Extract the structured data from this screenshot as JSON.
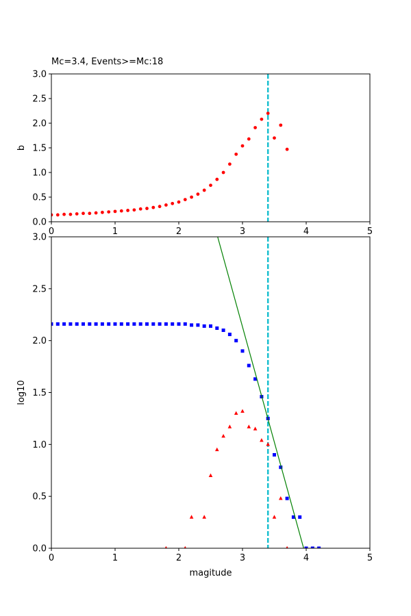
{
  "chart_data": [
    {
      "type": "scatter",
      "title": "Mc=3.4, Events>=Mc:18",
      "xlabel": "",
      "ylabel": "b",
      "xlim": [
        0,
        5
      ],
      "ylim": [
        0,
        3
      ],
      "xticks": [
        "0",
        "1",
        "2",
        "3",
        "4",
        "5"
      ],
      "yticks": [
        "0.0",
        "0.5",
        "1.0",
        "1.5",
        "2.0",
        "2.5",
        "3.0"
      ],
      "grid": false,
      "vline": {
        "x": 3.4,
        "style": "dashed",
        "color": "#17becf"
      },
      "series": [
        {
          "marker": "circle",
          "color": "#ff0000",
          "x": [
            0.0,
            0.1,
            0.2,
            0.3,
            0.4,
            0.5,
            0.6,
            0.7,
            0.8,
            0.9,
            1.0,
            1.1,
            1.2,
            1.3,
            1.4,
            1.5,
            1.6,
            1.7,
            1.8,
            1.9,
            2.0,
            2.1,
            2.2,
            2.3,
            2.4,
            2.5,
            2.6,
            2.7,
            2.8,
            2.9,
            3.0,
            3.1,
            3.2,
            3.3,
            3.4,
            3.5,
            3.6,
            3.7
          ],
          "y": [
            0.14,
            0.14,
            0.15,
            0.15,
            0.16,
            0.17,
            0.17,
            0.18,
            0.19,
            0.2,
            0.21,
            0.22,
            0.23,
            0.24,
            0.26,
            0.27,
            0.29,
            0.31,
            0.34,
            0.37,
            0.4,
            0.45,
            0.5,
            0.56,
            0.64,
            0.74,
            0.86,
            1.0,
            1.17,
            1.37,
            1.54,
            1.68,
            1.91,
            2.08,
            2.2,
            1.7,
            1.96,
            1.47
          ]
        }
      ]
    },
    {
      "type": "scatter",
      "title": "",
      "xlabel": "magitude",
      "ylabel": "log10",
      "xlim": [
        0,
        5
      ],
      "ylim": [
        0,
        3
      ],
      "xticks": [
        "0",
        "1",
        "2",
        "3",
        "4",
        "5"
      ],
      "yticks": [
        "0.0",
        "0.5",
        "1.0",
        "1.5",
        "2.0",
        "2.5",
        "3.0"
      ],
      "grid": false,
      "vline": {
        "x": 3.4,
        "style": "dashed",
        "color": "#17becf"
      },
      "series": [
        {
          "marker": "square",
          "color": "#0000ff",
          "x": [
            0.0,
            0.1,
            0.2,
            0.3,
            0.4,
            0.5,
            0.6,
            0.7,
            0.8,
            0.9,
            1.0,
            1.1,
            1.2,
            1.3,
            1.4,
            1.5,
            1.6,
            1.7,
            1.8,
            1.9,
            2.0,
            2.1,
            2.2,
            2.3,
            2.4,
            2.5,
            2.6,
            2.7,
            2.8,
            2.9,
            3.0,
            3.1,
            3.2,
            3.3,
            3.4,
            3.5,
            3.6,
            3.7,
            3.8,
            3.9,
            4.0,
            4.1,
            4.2
          ],
          "y": [
            2.16,
            2.16,
            2.16,
            2.16,
            2.16,
            2.16,
            2.16,
            2.16,
            2.16,
            2.16,
            2.16,
            2.16,
            2.16,
            2.16,
            2.16,
            2.16,
            2.16,
            2.16,
            2.16,
            2.16,
            2.16,
            2.16,
            2.15,
            2.15,
            2.14,
            2.14,
            2.12,
            2.1,
            2.06,
            2.0,
            1.9,
            1.76,
            1.63,
            1.46,
            1.25,
            0.9,
            0.78,
            0.48,
            0.3,
            0.3,
            0.0,
            0.0,
            0.0
          ]
        },
        {
          "marker": "triangle",
          "color": "#ff0000",
          "x": [
            1.8,
            2.1,
            2.2,
            2.4,
            2.5,
            2.6,
            2.7,
            2.8,
            2.9,
            3.0,
            3.1,
            3.2,
            3.3,
            3.4,
            3.5,
            3.6,
            3.7
          ],
          "y": [
            0.0,
            0.0,
            0.3,
            0.3,
            0.7,
            0.95,
            1.08,
            1.17,
            1.3,
            1.32,
            1.17,
            1.15,
            1.04,
            1.0,
            0.3,
            0.48,
            0.0
          ]
        },
        {
          "type": "line",
          "color": "#008000",
          "x": [
            2.61,
            3.96
          ],
          "y": [
            3.0,
            0.0
          ]
        }
      ]
    }
  ]
}
